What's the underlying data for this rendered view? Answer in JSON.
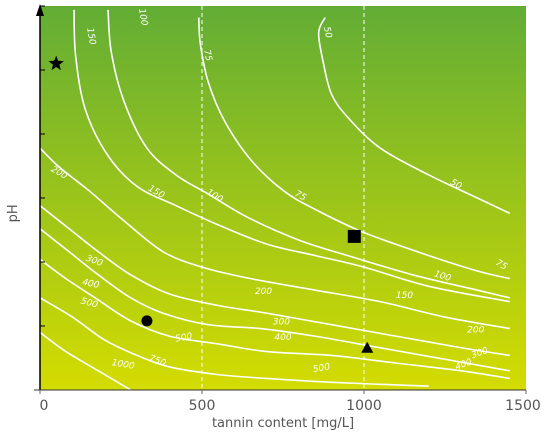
{
  "chart_data": {
    "type": "contour",
    "xlabel": "tannin content [mg/L]",
    "ylabel": "pH",
    "xlim": [
      0,
      1500
    ],
    "x_ticks": [
      "0",
      "500",
      "1000",
      "1500"
    ],
    "y_tick_count": 6,
    "reference_lines_x": [
      500,
      1000
    ],
    "background_gradient": {
      "top": "#62ad35",
      "bottom": "#d4dc00"
    },
    "line_color": "#ffffff",
    "contours": [
      {
        "label": "50",
        "points": [
          [
            880,
            0.97
          ],
          [
            860,
            0.93
          ],
          [
            875,
            0.85
          ],
          [
            900,
            0.77
          ],
          [
            950,
            0.71
          ],
          [
            1050,
            0.63
          ],
          [
            1200,
            0.56
          ],
          [
            1350,
            0.5
          ],
          [
            1450,
            0.46
          ]
        ],
        "label_positions": [
          [
            880,
            0.93,
            78
          ],
          [
            1280,
            0.53,
            30
          ]
        ]
      },
      {
        "label": "75",
        "points": [
          [
            490,
            0.97
          ],
          [
            495,
            0.9
          ],
          [
            520,
            0.8
          ],
          [
            570,
            0.7
          ],
          [
            650,
            0.6
          ],
          [
            750,
            0.52
          ],
          [
            850,
            0.47
          ],
          [
            1000,
            0.41
          ],
          [
            1200,
            0.35
          ],
          [
            1350,
            0.31
          ],
          [
            1450,
            0.29
          ]
        ],
        "label_positions": [
          [
            510,
            0.87,
            78
          ],
          [
            800,
            0.5,
            30
          ],
          [
            1420,
            0.32,
            30
          ]
        ]
      },
      {
        "label": "100",
        "points": [
          [
            210,
            0.99
          ],
          [
            220,
            0.88
          ],
          [
            260,
            0.75
          ],
          [
            330,
            0.63
          ],
          [
            420,
            0.56
          ],
          [
            520,
            0.51
          ],
          [
            640,
            0.45
          ],
          [
            800,
            0.39
          ],
          [
            950,
            0.35
          ],
          [
            1150,
            0.3
          ],
          [
            1350,
            0.26
          ],
          [
            1450,
            0.24
          ]
        ],
        "label_positions": [
          [
            310,
            0.97,
            80
          ],
          [
            535,
            0.5,
            32
          ],
          [
            1240,
            0.29,
            18
          ]
        ]
      },
      {
        "label": "150",
        "points": [
          [
            105,
            0.99
          ],
          [
            110,
            0.87
          ],
          [
            140,
            0.73
          ],
          [
            210,
            0.61
          ],
          [
            300,
            0.53
          ],
          [
            420,
            0.48
          ],
          [
            550,
            0.43
          ],
          [
            700,
            0.38
          ],
          [
            850,
            0.35
          ],
          [
            1000,
            0.32
          ],
          [
            1200,
            0.27
          ],
          [
            1450,
            0.23
          ]
        ],
        "label_positions": [
          [
            150,
            0.92,
            80
          ],
          [
            355,
            0.51,
            30
          ],
          [
            1125,
            0.24,
            0
          ]
        ]
      },
      {
        "label": "200",
        "points": [
          [
            0,
            0.63
          ],
          [
            60,
            0.58
          ],
          [
            150,
            0.52
          ],
          [
            260,
            0.44
          ],
          [
            380,
            0.36
          ],
          [
            500,
            0.32
          ],
          [
            650,
            0.29
          ],
          [
            850,
            0.26
          ],
          [
            1050,
            0.23
          ],
          [
            1250,
            0.19
          ],
          [
            1450,
            0.16
          ]
        ],
        "label_positions": [
          [
            55,
            0.56,
            30
          ],
          [
            690,
            0.25,
            0
          ],
          [
            1345,
            0.15,
            0
          ]
        ]
      },
      {
        "label": "300",
        "points": [
          [
            0,
            0.48
          ],
          [
            90,
            0.42
          ],
          [
            180,
            0.36
          ],
          [
            280,
            0.3
          ],
          [
            400,
            0.25
          ],
          [
            550,
            0.22
          ],
          [
            700,
            0.2
          ],
          [
            900,
            0.17
          ],
          [
            1100,
            0.14
          ],
          [
            1300,
            0.11
          ],
          [
            1450,
            0.09
          ]
        ],
        "label_positions": [
          [
            165,
            0.33,
            20
          ],
          [
            745,
            0.17,
            0
          ],
          [
            1360,
            0.09,
            -20
          ]
        ]
      },
      {
        "label": "400",
        "points": [
          [
            0,
            0.42
          ],
          [
            90,
            0.36
          ],
          [
            180,
            0.3
          ],
          [
            280,
            0.24
          ],
          [
            380,
            0.2
          ],
          [
            520,
            0.17
          ],
          [
            680,
            0.16
          ],
          [
            850,
            0.14
          ],
          [
            1050,
            0.11
          ],
          [
            1250,
            0.08
          ],
          [
            1450,
            0.05
          ]
        ],
        "label_positions": [
          [
            155,
            0.27,
            12
          ],
          [
            750,
            0.13,
            0
          ],
          [
            1310,
            0.06,
            -20
          ]
        ]
      },
      {
        "label": "500",
        "points": [
          [
            0,
            0.34
          ],
          [
            80,
            0.29
          ],
          [
            170,
            0.24
          ],
          [
            280,
            0.18
          ],
          [
            400,
            0.14
          ],
          [
            550,
            0.12
          ],
          [
            700,
            0.1
          ],
          [
            900,
            0.09
          ],
          [
            1100,
            0.07
          ],
          [
            1300,
            0.05
          ],
          [
            1450,
            0.03
          ]
        ],
        "label_positions": [
          [
            150,
            0.22,
            15
          ],
          [
            445,
            0.13,
            -10
          ],
          [
            870,
            0.05,
            -10
          ]
        ]
      },
      {
        "label": "750",
        "points": [
          [
            0,
            0.24
          ],
          [
            100,
            0.19
          ],
          [
            200,
            0.13
          ],
          [
            300,
            0.09
          ],
          [
            400,
            0.06
          ],
          [
            550,
            0.04
          ],
          [
            700,
            0.03
          ],
          [
            900,
            0.02
          ],
          [
            1200,
            0.01
          ]
        ],
        "label_positions": [
          [
            360,
            0.07,
            20
          ]
        ]
      },
      {
        "label": "1000",
        "points": [
          [
            0,
            0.15
          ],
          [
            80,
            0.1
          ],
          [
            180,
            0.05
          ],
          [
            280,
            0.0
          ]
        ],
        "label_positions": [
          [
            255,
            0.06,
            10
          ]
        ]
      }
    ],
    "markers": [
      {
        "shape": "star",
        "x": 50,
        "y": 0.85
      },
      {
        "shape": "square",
        "x": 970,
        "y": 0.4
      },
      {
        "shape": "circle",
        "x": 330,
        "y": 0.18
      },
      {
        "shape": "triangle",
        "x": 1010,
        "y": 0.11
      }
    ]
  }
}
